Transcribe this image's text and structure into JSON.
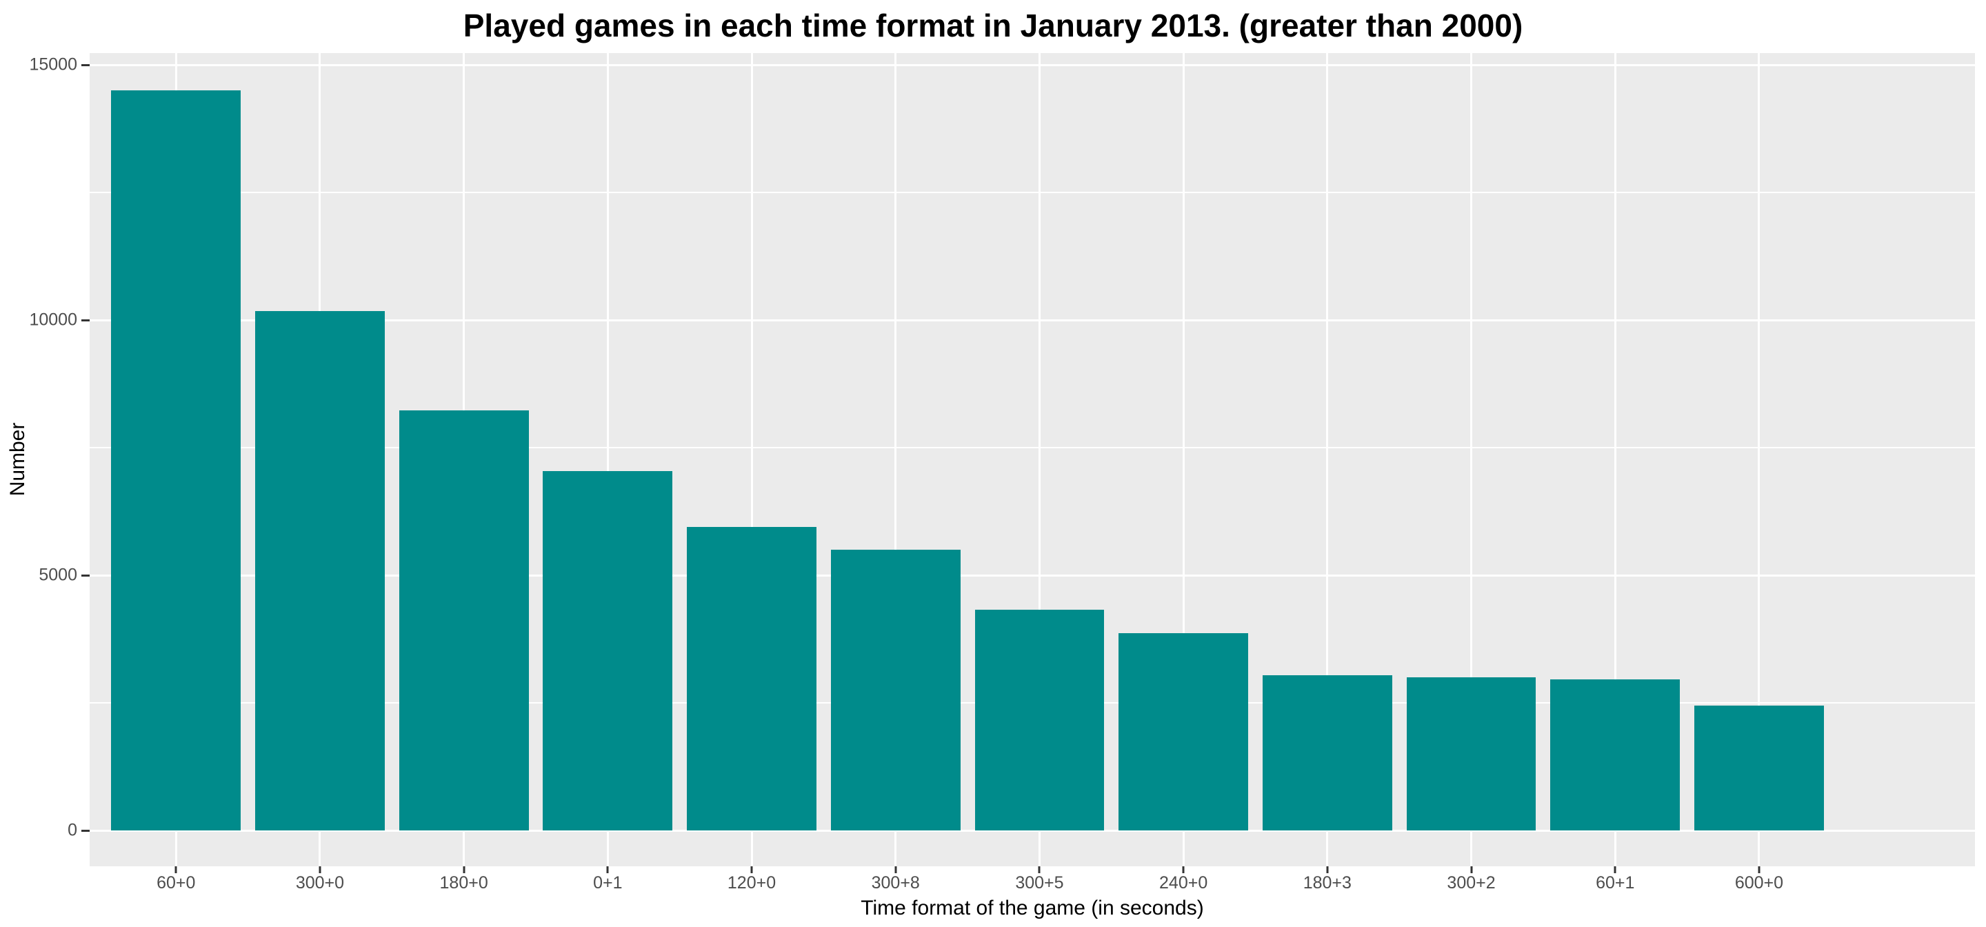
{
  "chart_data": {
    "type": "bar",
    "title": "Played games in each time format in January 2013. (greater than 2000)",
    "xlabel": "Time format of the game (in seconds)",
    "ylabel": "Number",
    "categories": [
      "60+0",
      "300+0",
      "180+0",
      "0+1",
      "120+0",
      "300+8",
      "300+5",
      "240+0",
      "180+3",
      "300+2",
      "60+1",
      "600+0"
    ],
    "values": [
      14500,
      10170,
      8230,
      7040,
      5950,
      5500,
      4320,
      3870,
      3040,
      3000,
      2960,
      2440
    ],
    "ylim": [
      0,
      15232
    ],
    "yticks": [
      0,
      5000,
      10000,
      15000
    ],
    "ytick_labels": [
      "0",
      "5000",
      "10000",
      "15000"
    ],
    "minor_yticks": [
      2500,
      7500,
      12500
    ],
    "grid": true,
    "legend": false,
    "colors": {
      "bar": "#008B8B",
      "panel_background": "#EBEBEB",
      "gridline": "#FFFFFF",
      "axis_text": "#4D4D4D",
      "tick_mark": "#333333",
      "title_text": "#000000",
      "figure_background": "#FFFFFF"
    }
  }
}
